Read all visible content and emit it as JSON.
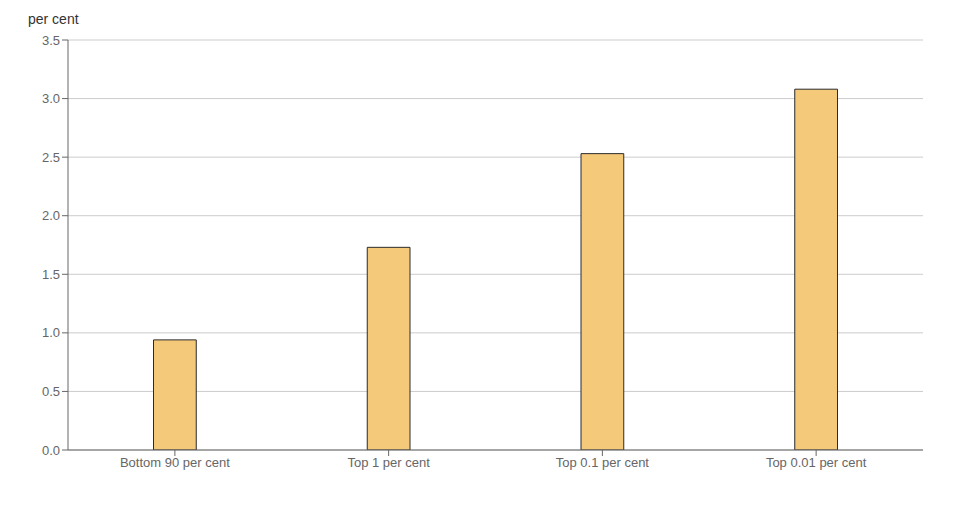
{
  "chart_data": {
    "type": "bar",
    "ylabel": "per cent",
    "categories": [
      "Bottom 90 per cent",
      "Top 1 per cent",
      "Top 0.1 per cent",
      "Top 0.01 per cent"
    ],
    "values": [
      0.94,
      1.73,
      2.53,
      3.08
    ],
    "color": "#F5C97A",
    "ylim": [
      0,
      3.5
    ],
    "yticks": [
      {
        "value": 0.0,
        "label": "0.0"
      },
      0.5,
      {
        "value": 1.0,
        "label": "1.0"
      },
      1.5,
      {
        "value": 2.0,
        "label": "2.0"
      },
      2.5,
      {
        "value": 3.0,
        "label": "3.0"
      },
      3.5
    ],
    "grid": true
  }
}
